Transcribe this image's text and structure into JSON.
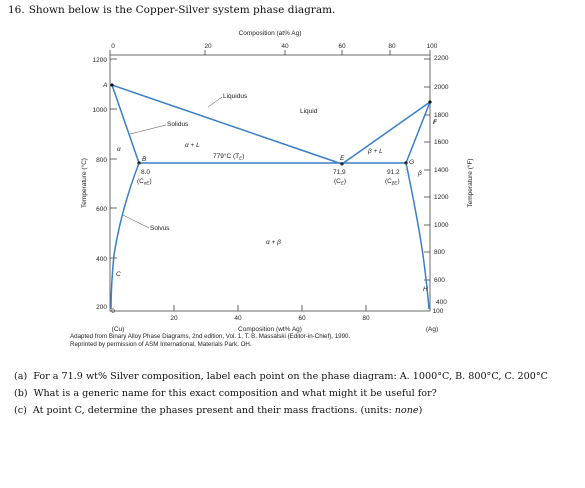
{
  "question": {
    "number": "16.",
    "title": "Shown below is the Copper-Silver system phase diagram."
  },
  "diagram": {
    "top_axis_label": "Composition (at% Ag)",
    "top_ticks": [
      "0",
      "20",
      "40",
      "60",
      "80",
      "100"
    ],
    "bottom_ticks": [
      "0",
      "20",
      "40",
      "60",
      "80",
      "100"
    ],
    "bottom_axis_label": "Composition (wt% Ag)",
    "left_end_label": "(Cu)",
    "right_end_label": "(Ag)",
    "left_axis_label": "Temperature (°C)",
    "right_axis_label": "Temperature (°F)",
    "left_ticks": [
      "1200",
      "1000",
      "800",
      "600",
      "400",
      "200"
    ],
    "right_ticks": [
      "2200",
      "2000",
      "1800",
      "1600",
      "1400",
      "1200",
      "1000",
      "800",
      "600",
      "400"
    ],
    "labels": {
      "A": "A",
      "B": "B",
      "C": "C",
      "E": "E",
      "F": "F",
      "G": "G",
      "H": "H",
      "liquidus": "Liquidus",
      "liquid": "Liquid",
      "solidus": "Solidus",
      "solvus": "Solvus",
      "alpha": "α",
      "beta": "β",
      "alpha_l": "α + L",
      "beta_l": "β + L",
      "alpha_beta": "α + β",
      "eutectic_temp": "779°C (T",
      "eutectic_temp_sub": "E",
      "eutectic_temp_close": ")",
      "b_comp": "8.0",
      "b_sub": "(C",
      "b_sub2": "αE",
      "b_sub3": ")",
      "e_comp": "71.9",
      "e_sub": "(C",
      "e_sub2": "E",
      "e_sub3": ")",
      "g_comp": "91.2",
      "g_sub": "(C",
      "g_sub2": "βE",
      "g_sub3": ")"
    }
  },
  "caption": {
    "line1": "Adapted from Binary Alloy Phase Diagrams, 2nd edition, Vol. 1, T. B. Massalski (Editor-in-Chief), 1990.",
    "line2": "Reprinted by permission of ASM International, Materials Park, OH."
  },
  "parts": [
    {
      "label": "(a)",
      "text": "For a 71.9 wt% Silver composition, label each point on the phase diagram: A. 1000°C, B. 800°C, C. 200°C"
    },
    {
      "label": "(b)",
      "text": "What is a generic name for this exact composition and what might it be useful for?"
    },
    {
      "label": "(c)",
      "text": "At point C, determine the phases present and their mass fractions. (units: ",
      "unit": "none",
      "close": ")"
    }
  ]
}
